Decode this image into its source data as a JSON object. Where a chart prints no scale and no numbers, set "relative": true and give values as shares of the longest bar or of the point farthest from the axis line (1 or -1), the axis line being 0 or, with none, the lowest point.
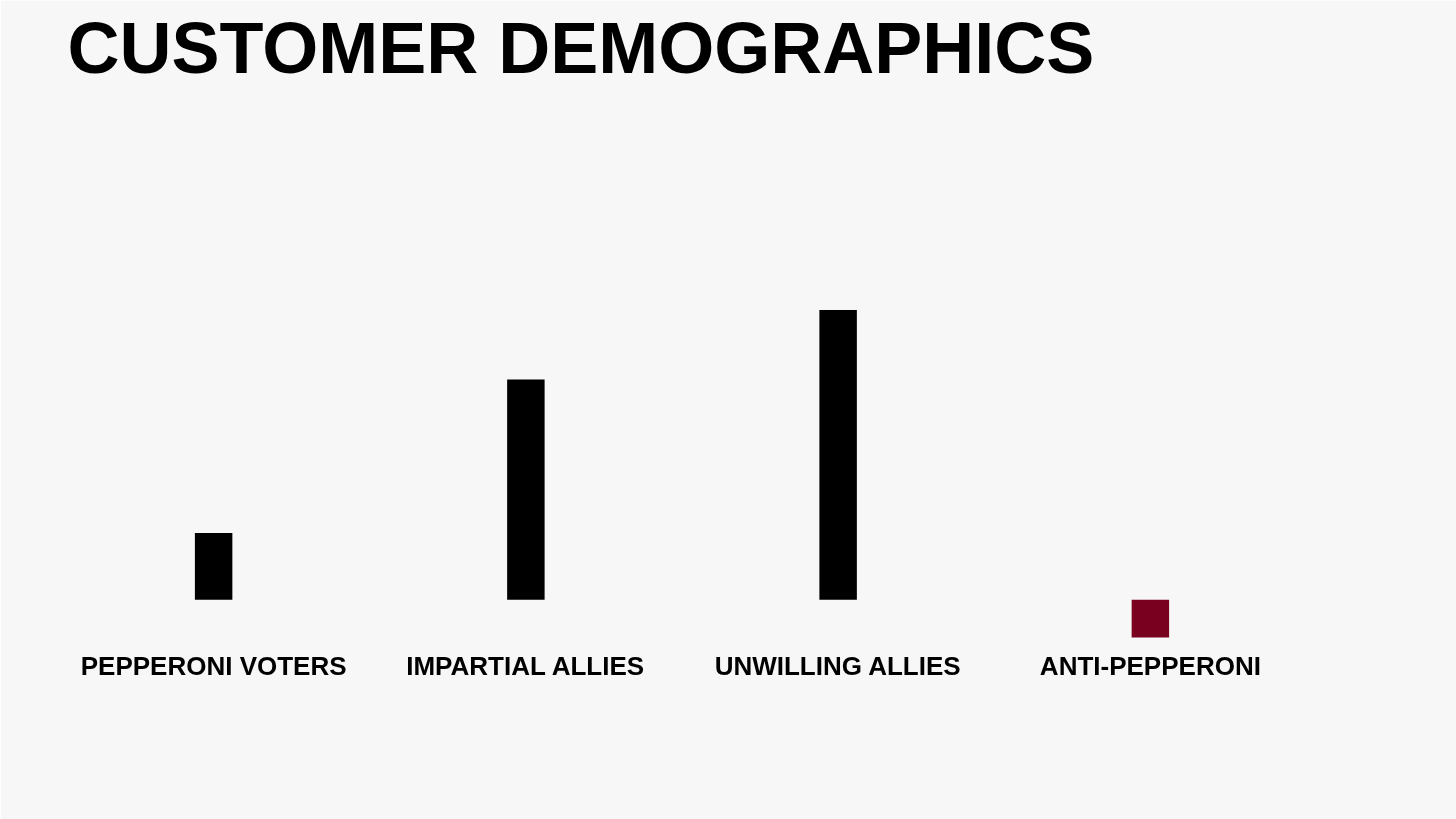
{
  "chart_data": {
    "type": "bar",
    "title": "CUSTOMER DEMOGRAPHICS",
    "relative": true,
    "categories": [
      "PEPPERONI VOTERS",
      "IMPARTIAL ALLIES",
      "UNWILLING ALLIES",
      "ANTI-PEPPERONI"
    ],
    "values": [
      0.23,
      0.76,
      1,
      -0.13
    ],
    "colors": [
      "#000000",
      "#000000",
      "#000000",
      "#7a0020"
    ],
    "grid": false
  }
}
